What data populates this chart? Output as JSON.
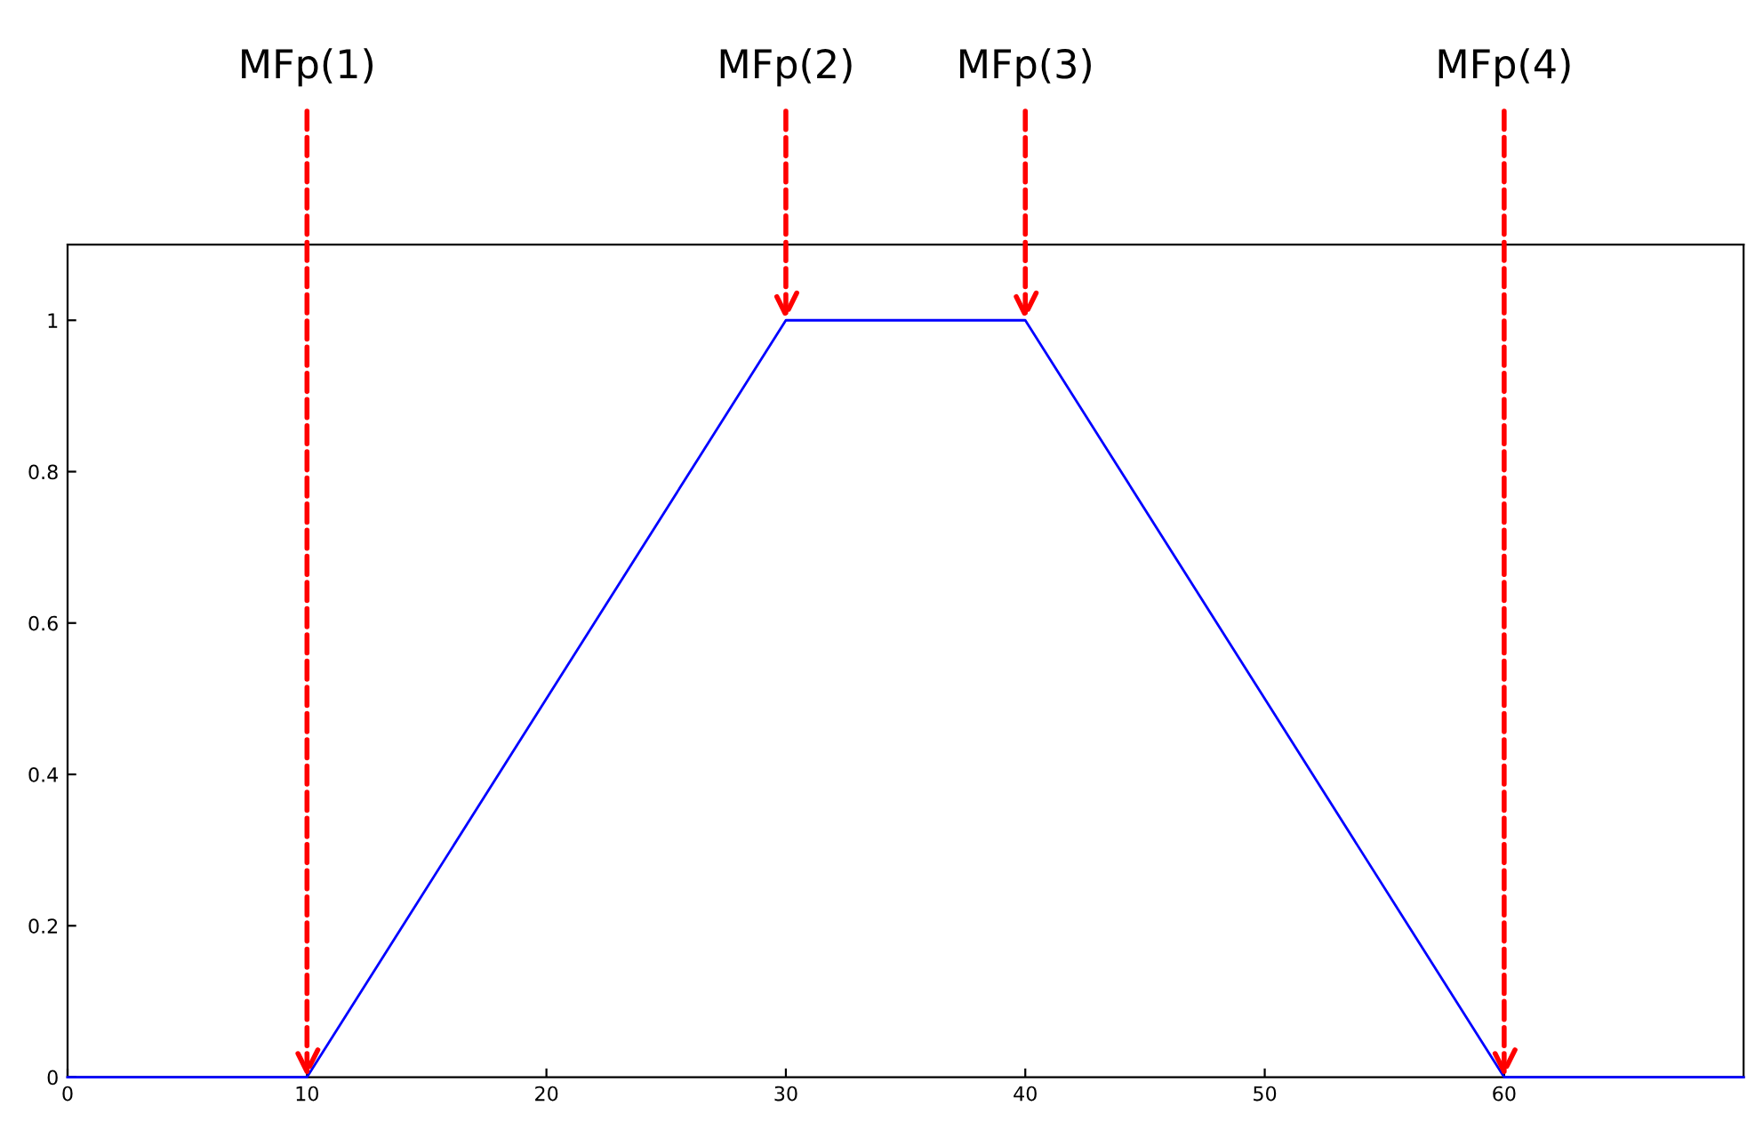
{
  "chart_data": {
    "type": "line",
    "x": [
      0,
      10,
      30,
      40,
      60,
      70
    ],
    "series": [
      {
        "color": "#0000ff",
        "values": [
          0,
          0,
          1,
          1,
          0,
          0
        ]
      }
    ],
    "xlim": [
      0,
      70
    ],
    "ylim": [
      0,
      1.1
    ],
    "xticks": [
      0,
      10,
      20,
      30,
      40,
      50,
      60
    ],
    "yticks": [
      0,
      0.2,
      0.4,
      0.6,
      0.8,
      1
    ],
    "grid": false,
    "marker": "none",
    "line_style": "solid",
    "annotations": [
      {
        "text": "MFp(1)",
        "x": 10,
        "y": 0
      },
      {
        "text": "MFp(2)",
        "x": 30,
        "y": 1
      },
      {
        "text": "MFp(3)",
        "x": 40,
        "y": 1
      },
      {
        "text": "MFp(4)",
        "x": 60,
        "y": 0
      }
    ]
  }
}
